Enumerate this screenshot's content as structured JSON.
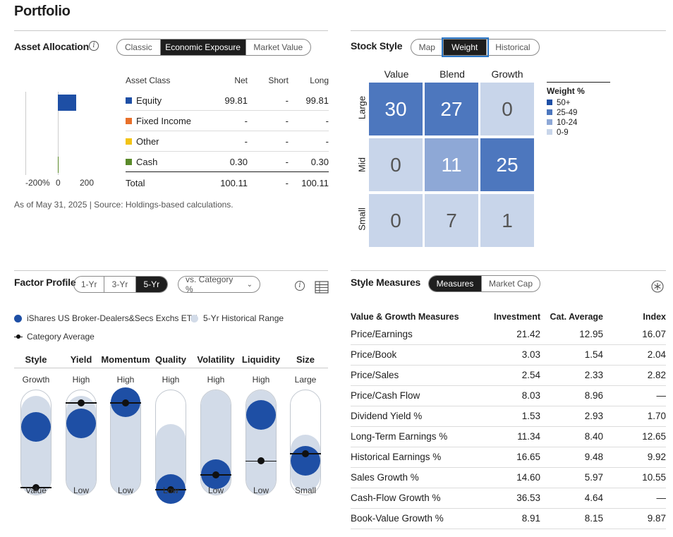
{
  "page_title": "Portfolio",
  "asset_allocation": {
    "title": "Asset Allocation",
    "tabs": [
      "Classic",
      "Economic Exposure",
      "Market Value"
    ],
    "active_tab": "Economic Exposure",
    "axis_labels": [
      "-200%",
      "0",
      "200"
    ],
    "columns": [
      "Asset Class",
      "Net",
      "Short",
      "Long"
    ],
    "rows": [
      {
        "name": "Equity",
        "color": "#1e4fa5",
        "net": "99.81",
        "short": "-",
        "long": "99.81"
      },
      {
        "name": "Fixed Income",
        "color": "#e8702a",
        "net": "-",
        "short": "-",
        "long": "-"
      },
      {
        "name": "Other",
        "color": "#f2c316",
        "net": "-",
        "short": "-",
        "long": "-"
      },
      {
        "name": "Cash",
        "color": "#5a8a2a",
        "net": "0.30",
        "short": "-",
        "long": "0.30"
      }
    ],
    "total": {
      "name": "Total",
      "net": "100.11",
      "short": "-",
      "long": "100.11"
    },
    "footnote": "As of May 31, 2025 | Source: Holdings-based calculations."
  },
  "stock_style": {
    "title": "Stock Style",
    "tabs": [
      "Map",
      "Weight",
      "Historical"
    ],
    "active_tab": "Weight",
    "col_labels": [
      "Value",
      "Blend",
      "Growth"
    ],
    "row_labels": [
      "Large",
      "Mid",
      "Small"
    ],
    "cells": [
      [
        "30",
        "27",
        "0"
      ],
      [
        "0",
        "11",
        "25"
      ],
      [
        "0",
        "7",
        "1"
      ]
    ],
    "legend_title": "Weight %",
    "legend": [
      {
        "label": "50+",
        "color": "#1e4fa5"
      },
      {
        "label": "25-49",
        "color": "#4d77be"
      },
      {
        "label": "10-24",
        "color": "#8ea8d6"
      },
      {
        "label": "0-9",
        "color": "#c8d5ea"
      }
    ]
  },
  "factor_profile": {
    "title": "Factor Profile",
    "tabs": [
      "1-Yr",
      "3-Yr",
      "5-Yr"
    ],
    "active_tab": "5-Yr",
    "dropdown": "vs. Category %",
    "legend_fund": "iShares US Broker-Dealers&Secs Exchs ETF",
    "legend_range": "5-Yr Historical Range",
    "legend_category": "Category Average",
    "factors": [
      {
        "name": "Style",
        "top": "Growth",
        "bottom": "Value",
        "fund": 0.65,
        "cat": 0.08,
        "range_top": 0.95,
        "range_bottom": 0.0
      },
      {
        "name": "Yield",
        "top": "High",
        "bottom": "Low",
        "fund": 0.68,
        "cat": 0.88,
        "range_top": 0.95,
        "range_bottom": 0.0
      },
      {
        "name": "Momentum",
        "top": "High",
        "bottom": "Low",
        "fund": 0.88,
        "cat": 0.88,
        "range_top": 1.0,
        "range_bottom": 0.0
      },
      {
        "name": "Quality",
        "top": "High",
        "bottom": "Low",
        "fund": 0.06,
        "cat": 0.06,
        "range_top": 0.68,
        "range_bottom": 0.0
      },
      {
        "name": "Volatility",
        "top": "High",
        "bottom": "Low",
        "fund": 0.2,
        "cat": 0.2,
        "range_top": 1.0,
        "range_bottom": 0.0
      },
      {
        "name": "Liquidity",
        "top": "High",
        "bottom": "Low",
        "fund": 0.76,
        "cat": 0.33,
        "range_top": 1.0,
        "range_bottom": 0.0
      },
      {
        "name": "Size",
        "top": "Large",
        "bottom": "Small",
        "fund": 0.33,
        "cat": 0.4,
        "range_top": 0.58,
        "range_bottom": 0.05
      }
    ]
  },
  "style_measures": {
    "title": "Style Measures",
    "tabs": [
      "Measures",
      "Market Cap"
    ],
    "active_tab": "Measures",
    "columns": [
      "Value & Growth Measures",
      "Investment",
      "Cat. Average",
      "Index"
    ],
    "rows": [
      [
        "Price/Earnings",
        "21.42",
        "12.95",
        "16.07"
      ],
      [
        "Price/Book",
        "3.03",
        "1.54",
        "2.04"
      ],
      [
        "Price/Sales",
        "2.54",
        "2.33",
        "2.82"
      ],
      [
        "Price/Cash Flow",
        "8.03",
        "8.96",
        "—"
      ],
      [
        "Dividend Yield %",
        "1.53",
        "2.93",
        "1.70"
      ],
      [
        "Long-Term Earnings %",
        "11.34",
        "8.40",
        "12.65"
      ],
      [
        "Historical Earnings %",
        "16.65",
        "9.48",
        "9.92"
      ],
      [
        "Sales Growth %",
        "14.60",
        "5.97",
        "10.55"
      ],
      [
        "Cash-Flow Growth %",
        "36.53",
        "4.64",
        "—"
      ],
      [
        "Book-Value Growth %",
        "8.91",
        "8.15",
        "9.87"
      ]
    ]
  }
}
